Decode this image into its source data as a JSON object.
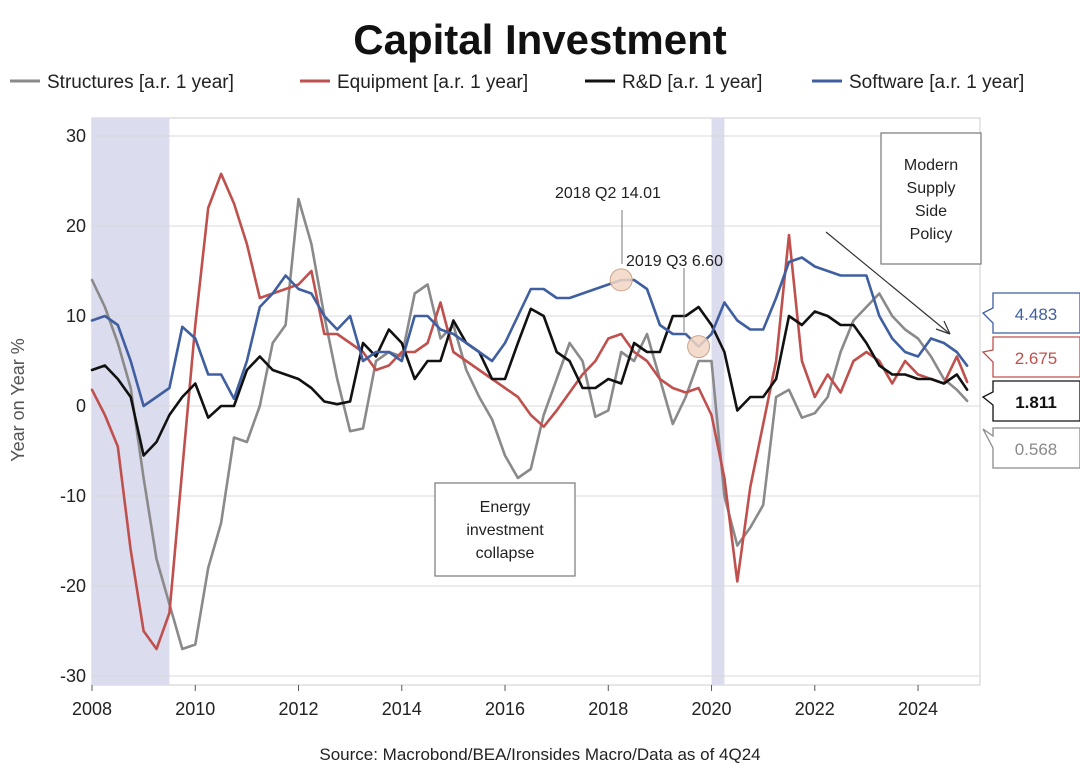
{
  "chart_data": {
    "type": "line",
    "title": "Capital Investment",
    "ylabel": "Year on Year %",
    "source": "Source: Macrobond/BEA/Ironsides Macro/Data as of 4Q24",
    "xlim": [
      2008,
      2025.2
    ],
    "ylim": [
      -31,
      32
    ],
    "x_ticks": [
      2008,
      2010,
      2012,
      2014,
      2016,
      2018,
      2020,
      2022,
      2024
    ],
    "y_ticks": [
      30,
      20,
      10,
      0,
      -10,
      -20,
      -30
    ],
    "grid": true,
    "legend_position": "top",
    "recessions": [
      [
        2008.0,
        2009.5
      ],
      [
        2020.0,
        2020.25
      ]
    ],
    "series": [
      {
        "name": "Structures [a.r. 1 year]",
        "color": "#8a8a8a",
        "points": [
          [
            2008.0,
            14
          ],
          [
            2008.25,
            11
          ],
          [
            2008.5,
            7
          ],
          [
            2008.75,
            2
          ],
          [
            2009.0,
            -8
          ],
          [
            2009.25,
            -17
          ],
          [
            2009.5,
            -22
          ],
          [
            2009.75,
            -27
          ],
          [
            2010.0,
            -26.5
          ],
          [
            2010.25,
            -18
          ],
          [
            2010.5,
            -13
          ],
          [
            2010.75,
            -3.5
          ],
          [
            2011.0,
            -4
          ],
          [
            2011.25,
            0
          ],
          [
            2011.5,
            7
          ],
          [
            2011.75,
            9
          ],
          [
            2012.0,
            23
          ],
          [
            2012.25,
            18
          ],
          [
            2012.5,
            10
          ],
          [
            2012.75,
            3
          ],
          [
            2013.0,
            -2.8
          ],
          [
            2013.25,
            -2.5
          ],
          [
            2013.5,
            5
          ],
          [
            2013.75,
            6
          ],
          [
            2014.0,
            5.5
          ],
          [
            2014.25,
            12.5
          ],
          [
            2014.5,
            13.5
          ],
          [
            2014.75,
            7.5
          ],
          [
            2015.0,
            9
          ],
          [
            2015.25,
            4
          ],
          [
            2015.5,
            1
          ],
          [
            2015.75,
            -1.5
          ],
          [
            2016.0,
            -5.5
          ],
          [
            2016.25,
            -8
          ],
          [
            2016.5,
            -7
          ],
          [
            2016.75,
            -1
          ],
          [
            2017.0,
            3
          ],
          [
            2017.25,
            7
          ],
          [
            2017.5,
            5
          ],
          [
            2017.75,
            -1.2
          ],
          [
            2018.0,
            -0.5
          ],
          [
            2018.25,
            6
          ],
          [
            2018.5,
            5
          ],
          [
            2018.75,
            8
          ],
          [
            2019.0,
            3
          ],
          [
            2019.25,
            -2
          ],
          [
            2019.5,
            1
          ],
          [
            2019.75,
            5
          ],
          [
            2020.0,
            5
          ],
          [
            2020.25,
            -10
          ],
          [
            2020.5,
            -15.5
          ],
          [
            2020.75,
            -13.5
          ],
          [
            2021.0,
            -11
          ],
          [
            2021.25,
            1
          ],
          [
            2021.5,
            1.8
          ],
          [
            2021.75,
            -1.3
          ],
          [
            2022.0,
            -0.8
          ],
          [
            2022.25,
            1
          ],
          [
            2022.5,
            6
          ],
          [
            2022.75,
            9.5
          ],
          [
            2023.0,
            11
          ],
          [
            2023.25,
            12.5
          ],
          [
            2023.5,
            10
          ],
          [
            2023.75,
            8.5
          ],
          [
            2024.0,
            7.5
          ],
          [
            2024.25,
            5.5
          ],
          [
            2024.5,
            3
          ],
          [
            2024.75,
            1.8
          ],
          [
            2024.95,
            0.568
          ]
        ]
      },
      {
        "name": "Equipment [a.r. 1 year]",
        "color": "#c0504d",
        "points": [
          [
            2008.0,
            1.8
          ],
          [
            2008.25,
            -1
          ],
          [
            2008.5,
            -4.5
          ],
          [
            2008.75,
            -16
          ],
          [
            2009.0,
            -25
          ],
          [
            2009.25,
            -27
          ],
          [
            2009.5,
            -23
          ],
          [
            2009.75,
            -7
          ],
          [
            2010.0,
            9
          ],
          [
            2010.25,
            22
          ],
          [
            2010.5,
            25.8
          ],
          [
            2010.75,
            22.5
          ],
          [
            2011.0,
            18
          ],
          [
            2011.25,
            12
          ],
          [
            2011.5,
            12.5
          ],
          [
            2011.75,
            13
          ],
          [
            2012.0,
            13.5
          ],
          [
            2012.25,
            15
          ],
          [
            2012.5,
            8
          ],
          [
            2012.75,
            8
          ],
          [
            2013.0,
            7
          ],
          [
            2013.25,
            6
          ],
          [
            2013.5,
            4
          ],
          [
            2013.75,
            4.5
          ],
          [
            2014.0,
            6
          ],
          [
            2014.25,
            6
          ],
          [
            2014.5,
            7
          ],
          [
            2014.75,
            11.5
          ],
          [
            2015.0,
            6
          ],
          [
            2015.25,
            5
          ],
          [
            2015.5,
            4
          ],
          [
            2015.75,
            3
          ],
          [
            2016.0,
            2
          ],
          [
            2016.25,
            1
          ],
          [
            2016.5,
            -1
          ],
          [
            2016.75,
            -2.3
          ],
          [
            2017.0,
            -0.5
          ],
          [
            2017.25,
            1.5
          ],
          [
            2017.5,
            3.5
          ],
          [
            2017.75,
            5
          ],
          [
            2018.0,
            7.5
          ],
          [
            2018.25,
            8
          ],
          [
            2018.5,
            6
          ],
          [
            2018.75,
            5
          ],
          [
            2019.0,
            3
          ],
          [
            2019.25,
            2
          ],
          [
            2019.5,
            1.5
          ],
          [
            2019.75,
            2
          ],
          [
            2020.0,
            -1
          ],
          [
            2020.25,
            -8
          ],
          [
            2020.5,
            -19.5
          ],
          [
            2020.75,
            -9
          ],
          [
            2021.0,
            -2
          ],
          [
            2021.25,
            5
          ],
          [
            2021.5,
            19
          ],
          [
            2021.75,
            5
          ],
          [
            2022.0,
            1
          ],
          [
            2022.25,
            3.5
          ],
          [
            2022.5,
            1.5
          ],
          [
            2022.75,
            5
          ],
          [
            2023.0,
            6
          ],
          [
            2023.25,
            5
          ],
          [
            2023.5,
            2.5
          ],
          [
            2023.75,
            5
          ],
          [
            2024.0,
            3.5
          ],
          [
            2024.25,
            3
          ],
          [
            2024.5,
            2.5
          ],
          [
            2024.75,
            5.5
          ],
          [
            2024.95,
            2.675
          ]
        ]
      },
      {
        "name": "R&D [a.r. 1 year]",
        "color": "#111111",
        "points": [
          [
            2008.0,
            4
          ],
          [
            2008.25,
            4.5
          ],
          [
            2008.5,
            3
          ],
          [
            2008.75,
            1
          ],
          [
            2009.0,
            -5.5
          ],
          [
            2009.25,
            -4
          ],
          [
            2009.5,
            -1
          ],
          [
            2009.75,
            1
          ],
          [
            2010.0,
            2.5
          ],
          [
            2010.25,
            -1.3
          ],
          [
            2010.5,
            0
          ],
          [
            2010.75,
            0
          ],
          [
            2011.0,
            4
          ],
          [
            2011.25,
            5.5
          ],
          [
            2011.5,
            4
          ],
          [
            2011.75,
            3.5
          ],
          [
            2012.0,
            3
          ],
          [
            2012.25,
            2
          ],
          [
            2012.5,
            0.5
          ],
          [
            2012.75,
            0.2
          ],
          [
            2013.0,
            0.5
          ],
          [
            2013.25,
            7
          ],
          [
            2013.5,
            5.5
          ],
          [
            2013.75,
            8.5
          ],
          [
            2014.0,
            7
          ],
          [
            2014.25,
            3
          ],
          [
            2014.5,
            5
          ],
          [
            2014.75,
            5
          ],
          [
            2015.0,
            9.5
          ],
          [
            2015.25,
            7
          ],
          [
            2015.5,
            6
          ],
          [
            2015.75,
            3
          ],
          [
            2016.0,
            3
          ],
          [
            2016.25,
            7
          ],
          [
            2016.5,
            10.8
          ],
          [
            2016.75,
            10
          ],
          [
            2017.0,
            6
          ],
          [
            2017.25,
            5
          ],
          [
            2017.5,
            2
          ],
          [
            2017.75,
            2
          ],
          [
            2018.0,
            3
          ],
          [
            2018.25,
            2.5
          ],
          [
            2018.5,
            7
          ],
          [
            2018.75,
            6
          ],
          [
            2019.0,
            6
          ],
          [
            2019.25,
            10
          ],
          [
            2019.5,
            10
          ],
          [
            2019.75,
            11
          ],
          [
            2020.0,
            9
          ],
          [
            2020.25,
            6
          ],
          [
            2020.5,
            -0.5
          ],
          [
            2020.75,
            1
          ],
          [
            2021.0,
            1
          ],
          [
            2021.25,
            3
          ],
          [
            2021.5,
            10
          ],
          [
            2021.75,
            9
          ],
          [
            2022.0,
            10.5
          ],
          [
            2022.25,
            10
          ],
          [
            2022.5,
            9
          ],
          [
            2022.75,
            9
          ],
          [
            2023.0,
            7
          ],
          [
            2023.25,
            4.5
          ],
          [
            2023.5,
            3.5
          ],
          [
            2023.75,
            3.5
          ],
          [
            2024.0,
            3
          ],
          [
            2024.25,
            3
          ],
          [
            2024.5,
            2.5
          ],
          [
            2024.75,
            3.5
          ],
          [
            2024.95,
            1.811
          ]
        ]
      },
      {
        "name": "Software [a.r. 1 year]",
        "color": "#3f5fa0",
        "points": [
          [
            2008.0,
            9.5
          ],
          [
            2008.25,
            10
          ],
          [
            2008.5,
            9
          ],
          [
            2008.75,
            5
          ],
          [
            2009.0,
            0
          ],
          [
            2009.25,
            1
          ],
          [
            2009.5,
            2
          ],
          [
            2009.75,
            8.8
          ],
          [
            2010.0,
            7.5
          ],
          [
            2010.25,
            3.5
          ],
          [
            2010.5,
            3.5
          ],
          [
            2010.75,
            0.8
          ],
          [
            2011.0,
            5
          ],
          [
            2011.25,
            11
          ],
          [
            2011.5,
            12.5
          ],
          [
            2011.75,
            14.5
          ],
          [
            2012.0,
            13
          ],
          [
            2012.25,
            12.5
          ],
          [
            2012.5,
            10
          ],
          [
            2012.75,
            8.5
          ],
          [
            2013.0,
            10
          ],
          [
            2013.25,
            5
          ],
          [
            2013.5,
            6
          ],
          [
            2013.75,
            6
          ],
          [
            2014.0,
            5
          ],
          [
            2014.25,
            10
          ],
          [
            2014.5,
            10
          ],
          [
            2014.75,
            8.5
          ],
          [
            2015.0,
            8
          ],
          [
            2015.25,
            7
          ],
          [
            2015.5,
            6
          ],
          [
            2015.75,
            5
          ],
          [
            2016.0,
            7
          ],
          [
            2016.25,
            10
          ],
          [
            2016.5,
            13
          ],
          [
            2016.75,
            13
          ],
          [
            2017.0,
            12
          ],
          [
            2017.25,
            12
          ],
          [
            2017.5,
            12.5
          ],
          [
            2017.75,
            13
          ],
          [
            2018.0,
            13.5
          ],
          [
            2018.25,
            14
          ],
          [
            2018.5,
            14
          ],
          [
            2018.75,
            13
          ],
          [
            2019.0,
            9
          ],
          [
            2019.25,
            8
          ],
          [
            2019.5,
            8
          ],
          [
            2019.75,
            6.6
          ],
          [
            2020.0,
            8
          ],
          [
            2020.25,
            11.5
          ],
          [
            2020.5,
            9.5
          ],
          [
            2020.75,
            8.5
          ],
          [
            2021.0,
            8.5
          ],
          [
            2021.25,
            12
          ],
          [
            2021.5,
            16
          ],
          [
            2021.75,
            16.5
          ],
          [
            2022.0,
            15.5
          ],
          [
            2022.25,
            15
          ],
          [
            2022.5,
            14.5
          ],
          [
            2022.75,
            14.5
          ],
          [
            2023.0,
            14.5
          ],
          [
            2023.25,
            10
          ],
          [
            2023.5,
            7.5
          ],
          [
            2023.75,
            6
          ],
          [
            2024.0,
            5.5
          ],
          [
            2024.25,
            7.5
          ],
          [
            2024.5,
            7
          ],
          [
            2024.75,
            6
          ],
          [
            2024.95,
            4.483
          ]
        ]
      }
    ],
    "annotations": [
      {
        "text": "2018 Q2 14.01",
        "x": 2018.25,
        "y": 14.01
      },
      {
        "text": "2019 Q3 6.60",
        "x": 2019.75,
        "y": 6.6
      }
    ],
    "text_boxes": [
      {
        "name": "energy-box",
        "lines": [
          "Energy",
          "investment",
          "collapse"
        ]
      },
      {
        "name": "policy-box",
        "lines": [
          "Modern",
          "Supply",
          "Side",
          "Policy"
        ]
      }
    ],
    "end_labels": [
      {
        "value": "4.483",
        "color": "#3f5fa0"
      },
      {
        "value": "2.675",
        "color": "#c0504d"
      },
      {
        "value": "1.811",
        "color": "#111111"
      },
      {
        "value": "0.568",
        "color": "#8a8a8a"
      }
    ]
  }
}
